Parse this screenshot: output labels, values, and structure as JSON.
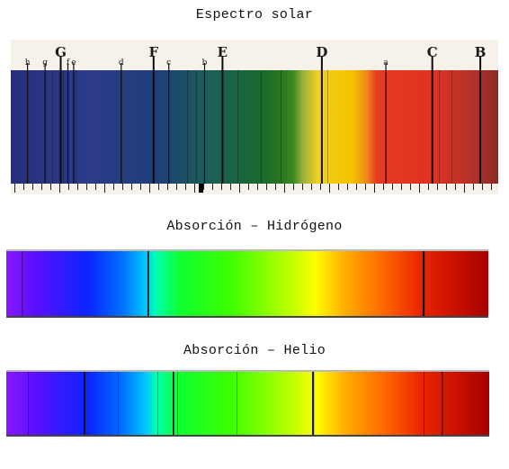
{
  "titles": {
    "solar": "Espectro solar",
    "hydrogen": "Absorción – Hidrógeno",
    "helium": "Absorción – Helio"
  },
  "solar": {
    "line_labels": [
      {
        "label": "h",
        "pos": 0.044,
        "big": false
      },
      {
        "label": "g",
        "pos": 0.09,
        "big": false
      },
      {
        "label": "G",
        "pos": 0.131,
        "big": true
      },
      {
        "label": "f",
        "pos": 0.15,
        "big": false
      },
      {
        "label": "e",
        "pos": 0.165,
        "big": false
      },
      {
        "label": "d",
        "pos": 0.29,
        "big": false
      },
      {
        "label": "F",
        "pos": 0.375,
        "big": true
      },
      {
        "label": "c",
        "pos": 0.415,
        "big": false
      },
      {
        "label": "b",
        "pos": 0.509,
        "big": false
      },
      {
        "label": "E",
        "pos": 0.556,
        "big": true
      },
      {
        "label": "D",
        "pos": 0.817,
        "big": true
      },
      {
        "label": "a",
        "pos": 0.985,
        "big": false
      },
      {
        "label": "C",
        "pos": 1.107,
        "big": true
      },
      {
        "label": "B",
        "pos": 1.233,
        "big": true
      }
    ]
  },
  "colors": {
    "violet": "#8a18ff",
    "blue": "#0a24ff",
    "cyan": "#00d8ff",
    "green": "#2aff00",
    "yellow": "#ffff00",
    "orange": "#ff8800",
    "red": "#e01800",
    "dark_red": "#b00000"
  }
}
